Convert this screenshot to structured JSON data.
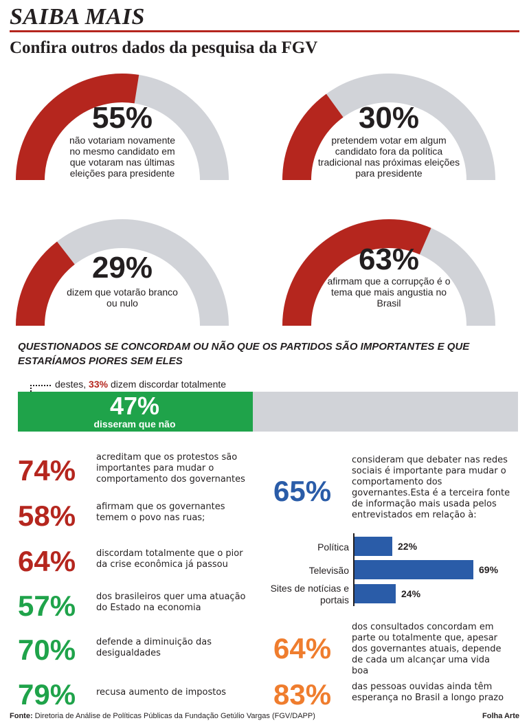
{
  "header": {
    "section": "SAIBA MAIS",
    "subtitle": "Confira outros dados da pesquisa da FGV"
  },
  "colors": {
    "red": "#b5261e",
    "gray": "#d1d3d8",
    "green": "#1fa34a",
    "blue": "#2a5ca8",
    "orange": "#ef7d2e"
  },
  "chart_data": [
    {
      "type": "pie",
      "variant": "half-donut gauge",
      "gauges": [
        {
          "value": 55,
          "label": "55%",
          "description": "não votariam novamente no mesmo candidato em que votaram nas últimas eleições para presidente"
        },
        {
          "value": 30,
          "label": "30%",
          "description": "pretendem votar em algum candidato fora da política tradicional nas próximas eleições para presidente"
        },
        {
          "value": 29,
          "label": "29%",
          "description": "dizem que votarão branco ou nulo"
        },
        {
          "value": 63,
          "label": "63%",
          "description": "afirmam que a corrupção é o tema que mais angustia no Brasil"
        }
      ]
    },
    {
      "type": "bar",
      "title": "QUESTIONADOS SE CONCORDAM OU NÃO QUE OS PARTIDOS SÃO IMPORTANTES E QUE ESTARÍAMOS PIORES SEM ELES",
      "value": 47,
      "value_label": "47%",
      "label": "disseram que não",
      "note": {
        "prefix": "destes,",
        "highlight": "33%",
        "suffix": "dizem discordar totalmente"
      }
    },
    {
      "type": "bar",
      "orientation": "horizontal",
      "categories": [
        "Política",
        "Televisão",
        "Sites de notícias e portais"
      ],
      "values": [
        22,
        69,
        24
      ],
      "value_labels": [
        "22%",
        "69%",
        "24%"
      ],
      "xlim": [
        0,
        100
      ]
    }
  ],
  "stats_left": [
    {
      "pct": "74%",
      "color": "red",
      "text": "acreditam que os protestos são importantes para mudar o comportamento dos governantes"
    },
    {
      "pct": "58%",
      "color": "red",
      "text": "afirmam que os governantes temem o povo nas ruas;"
    },
    {
      "pct": "64%",
      "color": "red",
      "text": "discordam totalmente que o pior da crise econômica já passou"
    },
    {
      "pct": "57%",
      "color": "green",
      "text": "dos brasileiros quer uma atuação do Estado na economia"
    },
    {
      "pct": "70%",
      "color": "green",
      "text": "defende a diminuição das desigualdades"
    },
    {
      "pct": "79%",
      "color": "green",
      "text": "recusa aumento de impostos"
    }
  ],
  "stats_right": [
    {
      "pct": "65%",
      "color": "blue",
      "text": "consideram que debater nas redes sociais é importante para mudar o comportamento dos governantes.Esta é a terceira fonte de informação mais usada pelos entrevistados em relação à:"
    },
    {
      "pct": "64%",
      "color": "orange",
      "text": "dos consultados concordam em parte ou totalmente que, apesar dos governantes atuais, depende de cada um alcançar uma vida boa"
    },
    {
      "pct": "83%",
      "color": "orange",
      "text": "das pessoas ouvidas ainda têm esperança no Brasil a longo prazo"
    }
  ],
  "footer": {
    "source_label": "Fonte:",
    "source_text": "Diretoria de Análise de Políticas Públicas da Fundação Getúlio Vargas (FGV/DAPP)",
    "credit": "Folha Arte"
  }
}
